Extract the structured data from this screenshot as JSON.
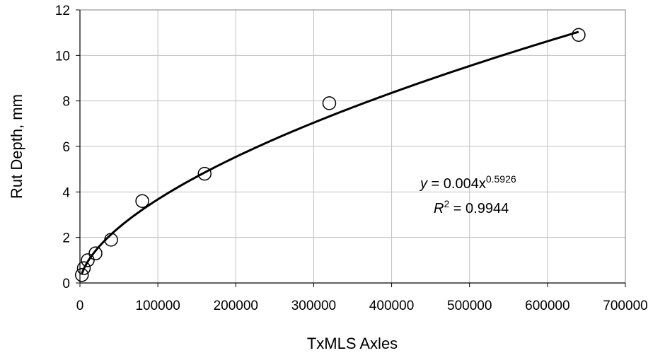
{
  "chart_data": {
    "type": "scatter",
    "title": "",
    "xlabel": "TxMLS Axles",
    "ylabel": "Rut Depth, mm",
    "xlim": [
      0,
      700000
    ],
    "ylim": [
      0,
      12
    ],
    "xticks": [
      "0",
      "100000",
      "200000",
      "300000",
      "400000",
      "500000",
      "600000",
      "700000"
    ],
    "yticks": [
      "0",
      "2",
      "4",
      "6",
      "8",
      "10",
      "12"
    ],
    "grid": true,
    "series": [
      {
        "marker": "open-circle",
        "x": [
          2500,
          5000,
          10000,
          20000,
          40000,
          80000,
          160000,
          320000,
          640000
        ],
        "y": [
          0.35,
          0.65,
          1.0,
          1.3,
          1.9,
          3.6,
          4.8,
          7.9,
          10.9
        ]
      }
    ],
    "trendline": {
      "type": "power",
      "coefficient": 0.004,
      "exponent": 0.5926,
      "x_range": [
        2500,
        640000
      ]
    },
    "annotation": {
      "eq_y": "y",
      "eq_mid": " = 0.004x",
      "eq_exp": "0.5926",
      "r_label": "R",
      "r_sup": "2",
      "r_value": " = 0.9944"
    }
  }
}
